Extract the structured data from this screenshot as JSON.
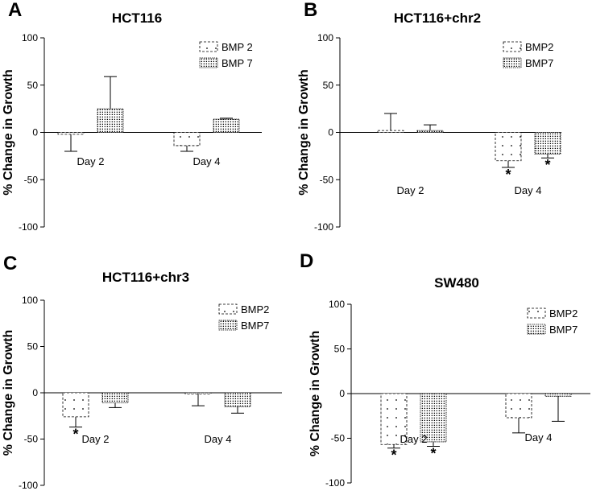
{
  "figure": {
    "panel_letters": [
      "A",
      "B",
      "C",
      "D"
    ]
  },
  "chart_data": [
    {
      "panel": "A",
      "type": "bar",
      "title": "HCT116",
      "ylabel": "% Change in Growth",
      "ylim": [
        -100,
        100
      ],
      "yticks": [
        100,
        50,
        0,
        -50,
        -100
      ],
      "categories": [
        "Day 2",
        "Day 4"
      ],
      "series": [
        {
          "name": "BMP 2",
          "values": [
            -2,
            -14
          ],
          "errors": [
            18,
            6
          ],
          "significant": [
            false,
            false
          ]
        },
        {
          "name": "BMP 7",
          "values": [
            25,
            14
          ],
          "errors": [
            34,
            1
          ],
          "significant": [
            false,
            false
          ]
        }
      ]
    },
    {
      "panel": "B",
      "type": "bar",
      "title": "HCT116+chr2",
      "ylabel": "% Change in Growth",
      "ylim": [
        -100,
        100
      ],
      "yticks": [
        100,
        50,
        0,
        -50,
        -100
      ],
      "categories": [
        "Day 2",
        "Day 4"
      ],
      "series": [
        {
          "name": "BMP2",
          "values": [
            2,
            -30
          ],
          "errors": [
            18,
            7
          ],
          "significant": [
            false,
            true
          ]
        },
        {
          "name": "BMP7",
          "values": [
            2,
            -23
          ],
          "errors": [
            6,
            4
          ],
          "significant": [
            false,
            true
          ]
        }
      ],
      "annotation": "*"
    },
    {
      "panel": "C",
      "type": "bar",
      "title": "HCT116+chr3",
      "ylabel": "% Change in Growth",
      "ylim": [
        -100,
        100
      ],
      "yticks": [
        100,
        50,
        0,
        -50,
        -100
      ],
      "categories": [
        "Day 2",
        "Day 4"
      ],
      "series": [
        {
          "name": "BMP2",
          "values": [
            -26,
            -1
          ],
          "errors": [
            11,
            13
          ],
          "significant": [
            true,
            false
          ]
        },
        {
          "name": "BMP7",
          "values": [
            -11,
            -15
          ],
          "errors": [
            5,
            7
          ],
          "significant": [
            false,
            false
          ]
        }
      ],
      "annotation": "*"
    },
    {
      "panel": "D",
      "type": "bar",
      "title": "SW480",
      "ylabel": "% Change in Growth",
      "ylim": [
        -100,
        100
      ],
      "yticks": [
        100,
        50,
        0,
        -50,
        -100
      ],
      "categories": [
        "Day 2",
        "Day 4"
      ],
      "series": [
        {
          "name": "BMP2",
          "values": [
            -57,
            -27
          ],
          "errors": [
            4,
            17
          ],
          "significant": [
            true,
            false
          ]
        },
        {
          "name": "BMP7",
          "values": [
            -54,
            -3
          ],
          "errors": [
            5,
            28
          ],
          "significant": [
            true,
            false
          ]
        }
      ],
      "annotation": "*"
    }
  ]
}
